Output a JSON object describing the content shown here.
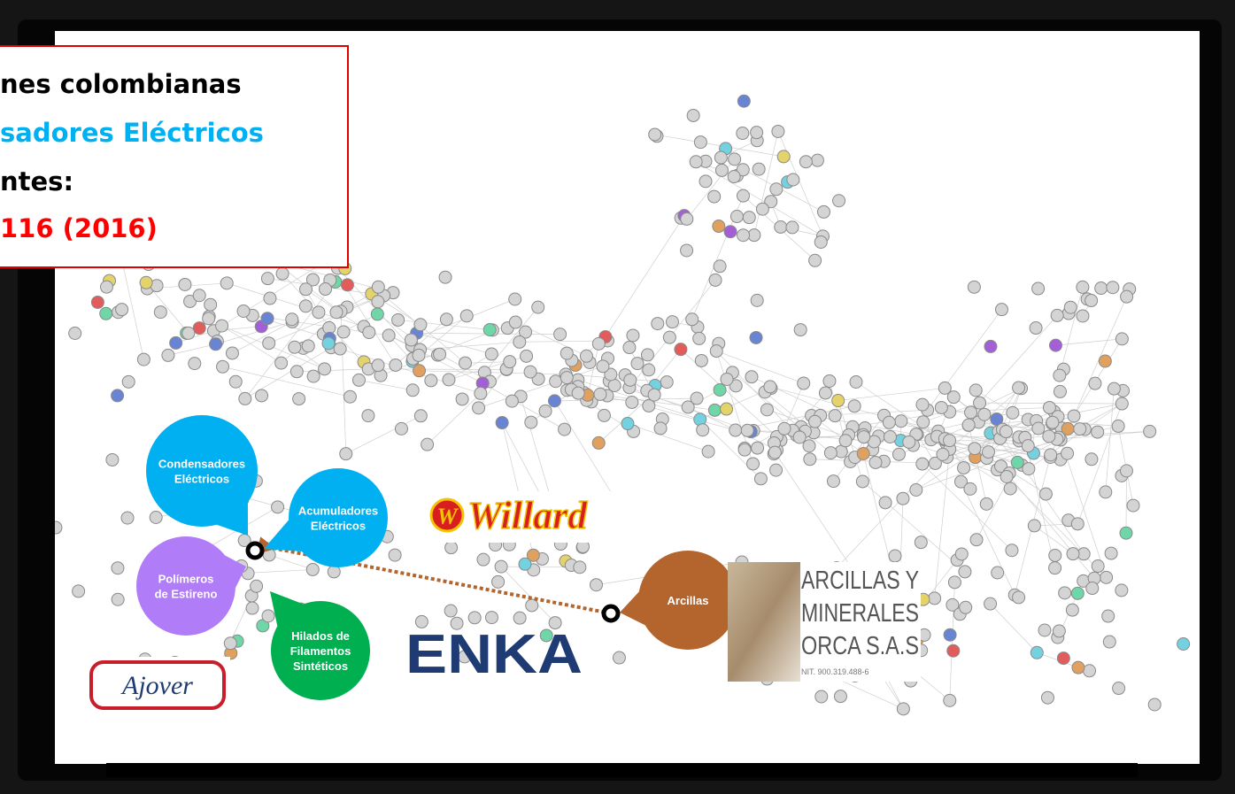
{
  "title_box": {
    "lines": [
      "nes colombianas",
      "sadores Eléctricos",
      "ntes:",
      "116 (2016)"
    ]
  },
  "bubbles": [
    {
      "lines": [
        "Condensadores",
        "Eléctricos"
      ]
    },
    {
      "lines": [
        "Acumuladores",
        "Eléctricos"
      ]
    },
    {
      "lines": [
        "Polímeros",
        "de Estireno"
      ]
    },
    {
      "lines": [
        "Hilados de",
        "Filamentos",
        "Sintéticos"
      ]
    },
    {
      "lines": [
        "Arcillas"
      ]
    }
  ],
  "logos": {
    "willard": {
      "mark": "W",
      "name": "Willard"
    },
    "enka": "ENKA",
    "ajover": "Ajover",
    "orca": {
      "lines": [
        "ARCILLAS Y",
        "MINERALES",
        "ORCA S.A.S"
      ],
      "nit": "NIT. 900.319.488-6"
    }
  }
}
